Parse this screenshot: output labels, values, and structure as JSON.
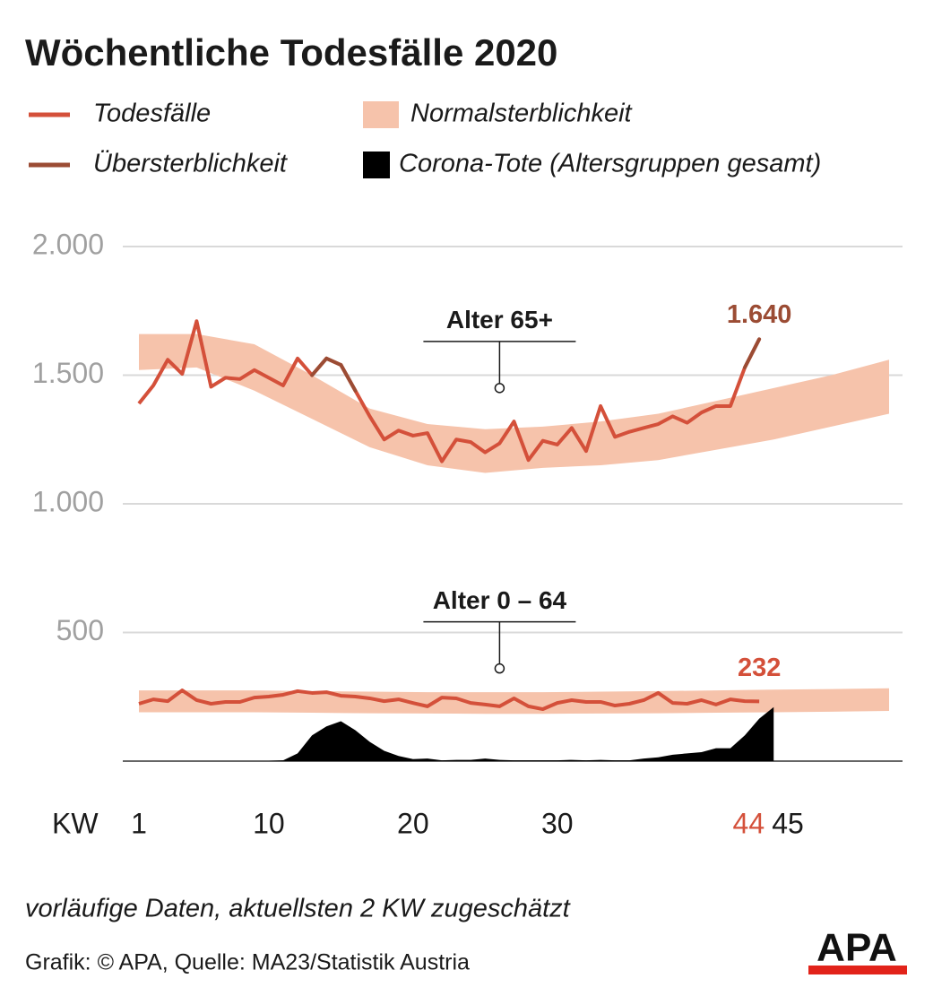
{
  "chart_data": {
    "type": "line",
    "title": "Wöchentliche Todesfälle 2020",
    "legend": [
      {
        "name": "Todesfälle",
        "color": "#d4503a",
        "shape": "line"
      },
      {
        "name": "Normalsterblichkeit",
        "color": "#f6c3ab",
        "shape": "box"
      },
      {
        "name": "Übersterblichkeit",
        "color": "#9b4c34",
        "shape": "line"
      },
      {
        "name": "Corona-Tote (Altersgruppen gesamt)",
        "color": "#000000",
        "shape": "box"
      }
    ],
    "xlabel": "KW",
    "xlim": [
      1,
      53
    ],
    "xticks": [
      1,
      10,
      20,
      30,
      {
        "value": 44,
        "label": "44",
        "color": "#d4503a"
      },
      45
    ],
    "ylim": [
      0,
      2000
    ],
    "yticks": [
      {
        "value": 500,
        "label": "500"
      },
      {
        "value": 1000,
        "label": "1.000"
      },
      {
        "value": 1500,
        "label": "1.500"
      },
      {
        "value": 2000,
        "label": "2.000"
      }
    ],
    "grid": true,
    "band_x": [
      1,
      5,
      9,
      13,
      17,
      21,
      25,
      29,
      33,
      37,
      41,
      45,
      49,
      53
    ],
    "panels": [
      {
        "label": "Alter 65+",
        "annotation_x": 26,
        "annotation_y": 1450,
        "values": [
          1390,
          1460,
          1560,
          1505,
          1710,
          1455,
          1490,
          1485,
          1520,
          1490,
          1460,
          1565,
          1500,
          1565,
          1540,
          1440,
          1340,
          1250,
          1285,
          1265,
          1275,
          1165,
          1250,
          1240,
          1200,
          1235,
          1320,
          1170,
          1245,
          1230,
          1295,
          1205,
          1380,
          1260,
          1280,
          1295,
          1310,
          1340,
          1315,
          1355,
          1380,
          1380,
          1530,
          1640
        ],
        "value_label": "1.640",
        "value_label_color": "#9b4c34",
        "band_high": [
          1660,
          1660,
          1620,
          1500,
          1370,
          1310,
          1290,
          1300,
          1320,
          1350,
          1400,
          1450,
          1500,
          1560
        ],
        "band_low": [
          1520,
          1530,
          1440,
          1330,
          1220,
          1150,
          1120,
          1140,
          1150,
          1170,
          1210,
          1250,
          1300,
          1350
        ]
      },
      {
        "label": "Alter 0 – 64",
        "annotation_x": 26,
        "annotation_y": 360,
        "values": [
          223,
          240,
          233,
          275,
          237,
          223,
          230,
          230,
          247,
          251,
          258,
          272,
          265,
          268,
          254,
          251,
          244,
          233,
          240,
          226,
          213,
          247,
          244,
          226,
          220,
          213,
          244,
          213,
          202,
          226,
          237,
          230,
          230,
          216,
          223,
          237,
          265,
          226,
          223,
          237,
          220,
          240,
          233,
          232
        ],
        "value_label": "232",
        "value_label_color": "#d4503a",
        "band_high": [
          275,
          275,
          275,
          272,
          270,
          268,
          268,
          268,
          270,
          272,
          275,
          278,
          280,
          283
        ],
        "band_low": [
          190,
          190,
          190,
          188,
          186,
          185,
          184,
          184,
          185,
          186,
          188,
          190,
          192,
          195
        ]
      }
    ],
    "corona_deaths": [
      0,
      0,
      0,
      0,
      0,
      0,
      0,
      0,
      0,
      0,
      3,
      30,
      100,
      135,
      155,
      120,
      75,
      40,
      20,
      8,
      10,
      3,
      5,
      5,
      10,
      5,
      3,
      3,
      3,
      3,
      5,
      3,
      5,
      3,
      3,
      10,
      15,
      25,
      30,
      35,
      50,
      50,
      100,
      165,
      210
    ],
    "note": "vorläufige Daten, aktuellsten 2 KW zugeschätzt",
    "source": "Grafik: © APA, Quelle: MA23/Statistik Austria",
    "logo": "APA"
  }
}
